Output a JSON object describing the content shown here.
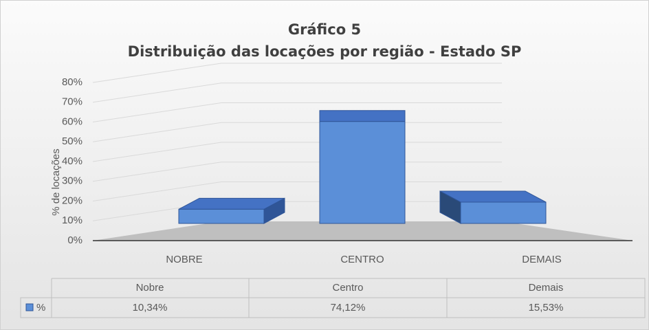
{
  "chart_data": {
    "type": "bar3d",
    "title": "Gráfico 5",
    "subtitle": "Distribuição das locações por região - Estado SP",
    "y_label": "% de locações",
    "categories": [
      "NOBRE",
      "CENTRO",
      "DEMAIS"
    ],
    "table_headers": [
      "Nobre",
      "Centro",
      "Demais"
    ],
    "series": [
      {
        "name": "%",
        "color": "#5b8fd8",
        "values": [
          10.34,
          74.12,
          15.53
        ],
        "value_labels": [
          "10,34%",
          "74,12%",
          "15,53%"
        ]
      }
    ],
    "ylim": [
      0,
      80
    ],
    "yticks": [
      {
        "value": 0,
        "label": "0%"
      },
      {
        "value": 10,
        "label": "10%"
      },
      {
        "value": 20,
        "label": "20%"
      },
      {
        "value": 30,
        "label": "30%"
      },
      {
        "value": 40,
        "label": "40%"
      },
      {
        "value": 50,
        "label": "50%"
      },
      {
        "value": 60,
        "label": "60%"
      },
      {
        "value": 70,
        "label": "70%"
      },
      {
        "value": 80,
        "label": "80%"
      }
    ],
    "grid": true
  }
}
